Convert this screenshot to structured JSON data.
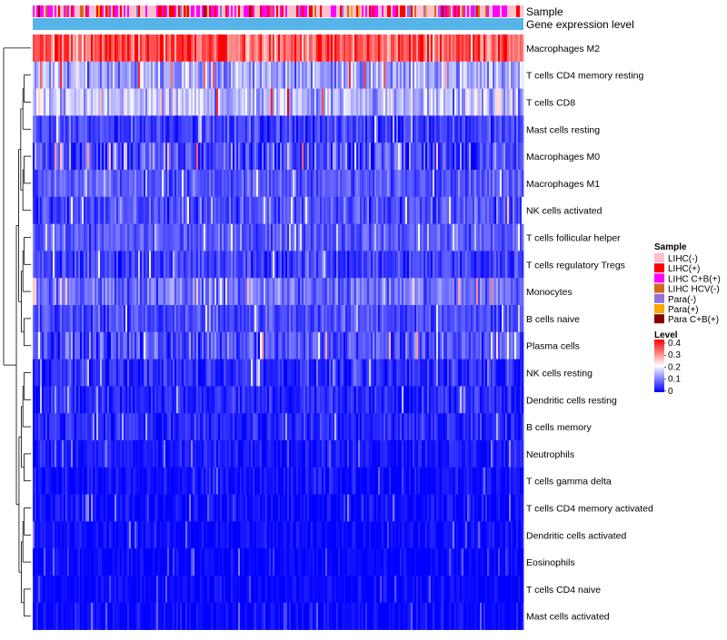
{
  "chart_data": {
    "type": "heatmap",
    "annotation_rows": [
      {
        "key": "sample",
        "label": "Sample"
      },
      {
        "key": "gene",
        "label": "Gene expression level"
      }
    ],
    "rows": [
      {
        "name": "Macrophages M2",
        "mean": 0.33,
        "spread": 0.08
      },
      {
        "name": "T cells CD4 memory resting",
        "mean": 0.13,
        "spread": 0.06
      },
      {
        "name": "T cells CD8",
        "mean": 0.15,
        "spread": 0.07
      },
      {
        "name": "Mast cells resting",
        "mean": 0.05,
        "spread": 0.04
      },
      {
        "name": "Macrophages M0",
        "mean": 0.06,
        "spread": 0.07
      },
      {
        "name": "Macrophages M1",
        "mean": 0.07,
        "spread": 0.035
      },
      {
        "name": "NK cells activated",
        "mean": 0.06,
        "spread": 0.045
      },
      {
        "name": "T cells follicular helper",
        "mean": 0.07,
        "spread": 0.035
      },
      {
        "name": "T cells regulatory  Tregs",
        "mean": 0.05,
        "spread": 0.04
      },
      {
        "name": "Monocytes",
        "mean": 0.09,
        "spread": 0.05
      },
      {
        "name": "B cells naive",
        "mean": 0.06,
        "spread": 0.04
      },
      {
        "name": "Plasma cells",
        "mean": 0.06,
        "spread": 0.05
      },
      {
        "name": "NK cells resting",
        "mean": 0.035,
        "spread": 0.04
      },
      {
        "name": "Dendritic cells resting",
        "mean": 0.03,
        "spread": 0.035
      },
      {
        "name": "B cells memory",
        "mean": 0.03,
        "spread": 0.035
      },
      {
        "name": "Neutrophils",
        "mean": 0.02,
        "spread": 0.025
      },
      {
        "name": "T cells gamma delta",
        "mean": 0.01,
        "spread": 0.03
      },
      {
        "name": "T cells CD4 memory activated",
        "mean": 0.01,
        "spread": 0.03
      },
      {
        "name": "Dendritic cells activated",
        "mean": 0.008,
        "spread": 0.025
      },
      {
        "name": "Eosinophils",
        "mean": 0.005,
        "spread": 0.02
      },
      {
        "name": "T cells CD4 naive",
        "mean": 0.005,
        "spread": 0.02
      },
      {
        "name": "Mast cells activated",
        "mean": 0.005,
        "spread": 0.025
      }
    ],
    "n_samples": 270,
    "sample_legend": {
      "title": "Sample",
      "entries": [
        {
          "label": "LIHC(-)",
          "color": "#FFC0CB"
        },
        {
          "label": "LIHC(+)",
          "color": "#FF0000"
        },
        {
          "label": "LIHC C+B(+)",
          "color": "#FF00FF"
        },
        {
          "label": "LIHC HCV(-)",
          "color": "#D2691E"
        },
        {
          "label": "Para(-)",
          "color": "#9370DB"
        },
        {
          "label": "Para(+)",
          "color": "#FFA500"
        },
        {
          "label": "Para C+B(+)",
          "color": "#8B0000"
        }
      ]
    },
    "level_legend": {
      "title": "Level",
      "ticks": [
        "0.4",
        "0.3",
        "0.2",
        "0.1",
        "0"
      ],
      "range": [
        0,
        0.4
      ]
    },
    "gene_expression_color": "#56B4E9",
    "color_scale": {
      "low": "#0000FF",
      "mid": "#FFFFFF",
      "high": "#FF0000",
      "mid_value": 0.2
    }
  }
}
